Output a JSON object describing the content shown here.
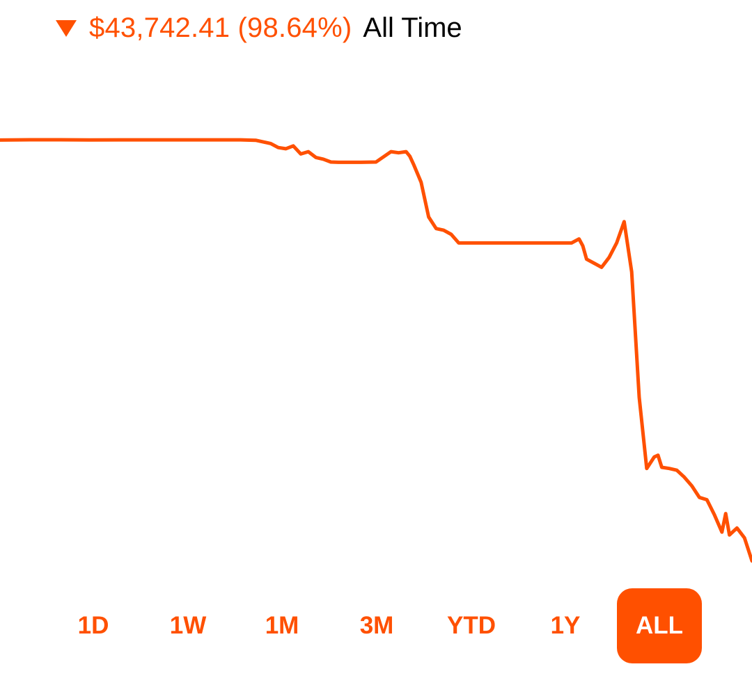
{
  "header": {
    "direction_icon": "triangle-down-icon",
    "change_value": "$43,742.41 (98.64%)",
    "range_label": "All Time"
  },
  "colors": {
    "accent": "#FF5000",
    "active_tab_text": "#FFFFFF",
    "label_text": "#000000",
    "background": "#FFFFFF"
  },
  "tabs": [
    {
      "label": "1D",
      "selected": false
    },
    {
      "label": "1W",
      "selected": false
    },
    {
      "label": "1M",
      "selected": false
    },
    {
      "label": "3M",
      "selected": false
    },
    {
      "label": "YTD",
      "selected": false
    },
    {
      "label": "1Y",
      "selected": false
    },
    {
      "label": "ALL",
      "selected": true
    }
  ],
  "chart_data": {
    "type": "line",
    "x": [
      0,
      4,
      8,
      12,
      16,
      20,
      24,
      28,
      32,
      34,
      36,
      37,
      38,
      39,
      40,
      41,
      42,
      43,
      44,
      45,
      46,
      47,
      48,
      50,
      52,
      53,
      54,
      54.5,
      55,
      56,
      57,
      58,
      59,
      60,
      61,
      62,
      63,
      64,
      65,
      66,
      67,
      68,
      69,
      70,
      71,
      72,
      73,
      74,
      75,
      76,
      77,
      77.5,
      78,
      79,
      80,
      81,
      82,
      83,
      84,
      85,
      86,
      87,
      87.5,
      88,
      89,
      90,
      91,
      92,
      93,
      94,
      95,
      96,
      96.5,
      97,
      98,
      99,
      100
    ],
    "values": [
      0.8,
      0.85,
      0.85,
      0.82,
      0.84,
      0.84,
      0.84,
      0.84,
      0.84,
      0.77,
      0.2,
      -0.5,
      -0.7,
      -0.2,
      -1.6,
      -1.2,
      -2.2,
      -2.5,
      -3.0,
      -3.05,
      -3.05,
      -3.05,
      -3.05,
      -3.0,
      -1.2,
      -1.4,
      -1.2,
      -2.0,
      -3.4,
      -6.5,
      -12.5,
      -14.5,
      -14.8,
      -15.5,
      -17.0,
      -17.0,
      -17.0,
      -17.0,
      -17.0,
      -17.0,
      -17.0,
      -17.0,
      -17.0,
      -17.0,
      -17.0,
      -17.0,
      -17.0,
      -17.0,
      -17.0,
      -17.0,
      -16.3,
      -17.5,
      -19.8,
      -20.5,
      -21.2,
      -19.5,
      -17.0,
      -13.3,
      -22.0,
      -43.7,
      -56.0,
      -54.0,
      -53.7,
      -55.8,
      -56.0,
      -56.3,
      -57.5,
      -59.0,
      -61.0,
      -61.4,
      -64.0,
      -67.0,
      -63.8,
      -67.5,
      -66.3,
      -68.0,
      -72.0
    ],
    "ylim": [
      -76,
      13
    ],
    "line_color": "#FF5000",
    "grid": false,
    "axes_visible": false
  }
}
